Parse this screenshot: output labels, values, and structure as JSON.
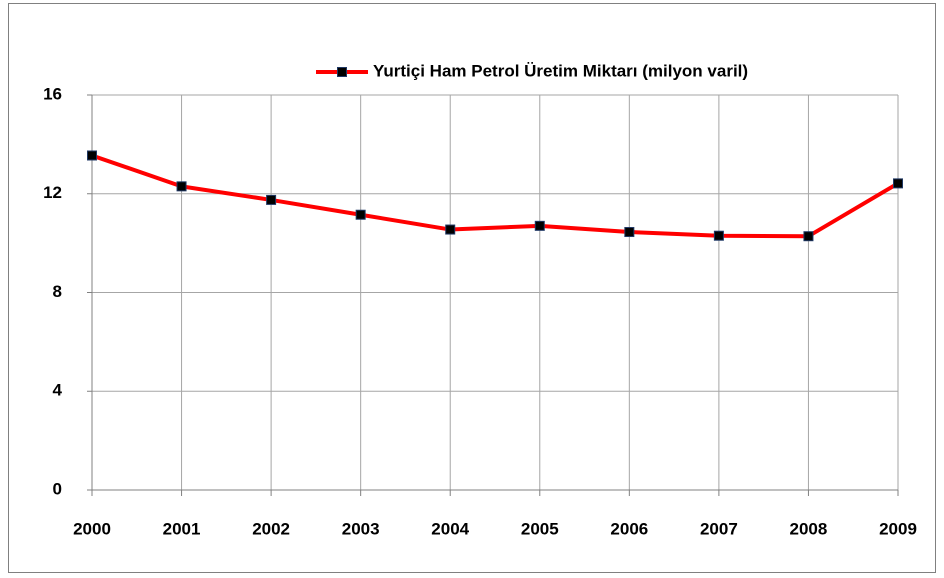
{
  "chart_data": {
    "type": "line",
    "categories": [
      "2000",
      "2001",
      "2002",
      "2003",
      "2004",
      "2005",
      "2006",
      "2007",
      "2008",
      "2009"
    ],
    "series": [
      {
        "name": "Yurtiçi Ham Petrol Üretim Miktarı (milyon varil)",
        "color": "#ff0000",
        "marker_color": "#000000",
        "values": [
          13.55,
          12.3,
          11.75,
          11.15,
          10.55,
          10.7,
          10.45,
          10.3,
          10.28,
          12.42
        ]
      }
    ],
    "ylim": [
      0,
      16
    ],
    "yticks": [
      0,
      4,
      8,
      12,
      16
    ],
    "grid": true,
    "legend": "top-right"
  }
}
